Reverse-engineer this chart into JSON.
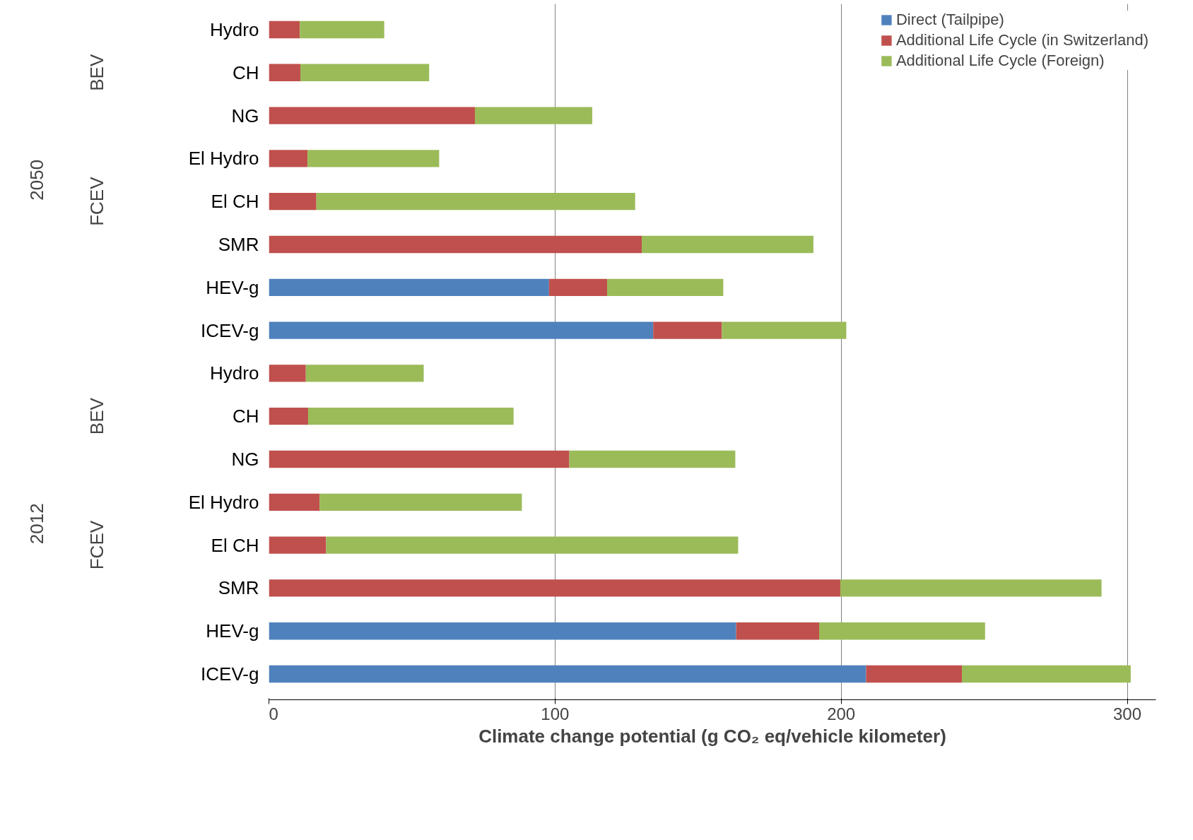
{
  "chart_data": {
    "type": "bar",
    "orientation": "horizontal",
    "stacked": true,
    "xlabel": "Climate change potential (g CO₂ eq/vehicle kilometer)",
    "categories": [
      "Hydro",
      "CH",
      "NG",
      "El Hydro",
      "El CH",
      "SMR",
      "HEV-g",
      "ICEV-g",
      "Hydro",
      "CH",
      "NG",
      "El Hydro",
      "El CH",
      "SMR",
      "HEV-g",
      "ICEV-g"
    ],
    "series": [
      {
        "name": "Direct (Tailpipe)",
        "color": "#4f81bd",
        "values": [
          null,
          null,
          null,
          null,
          null,
          null,
          97.9,
          134.3,
          null,
          null,
          null,
          null,
          null,
          null,
          163.3,
          208.7
        ]
      },
      {
        "name": "Additional Life Cycle (in Switzerland)",
        "color": "#c0504d",
        "values": [
          10.8,
          11,
          72,
          13.5,
          16.6,
          130.3,
          20.3,
          24,
          12.9,
          13.7,
          105,
          17.7,
          20,
          199.7,
          29,
          33.5
        ]
      },
      {
        "name": "Additional Life Cycle (Foreign)",
        "color": "#9bbb59",
        "values": [
          29.5,
          45,
          41,
          46,
          111.4,
          60,
          40.6,
          43.5,
          41.2,
          71.8,
          58,
          70.7,
          144,
          91.3,
          58,
          59
        ]
      }
    ],
    "annotations": [
      "2050",
      "BEV",
      "FCEV",
      "2012",
      "BEV",
      "FCEV"
    ],
    "xlim": [
      0,
      310
    ],
    "xticks": [
      0,
      100,
      200,
      300
    ],
    "grid": "x",
    "legend": "top right"
  }
}
